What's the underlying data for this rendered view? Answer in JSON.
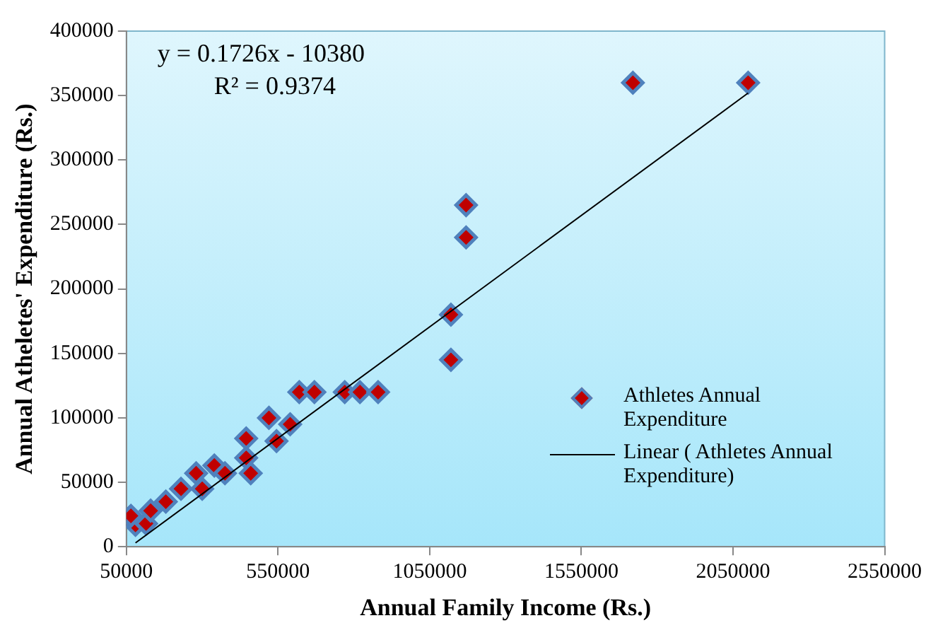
{
  "chart_data": {
    "type": "scatter",
    "xlabel": "Annual Family Income (Rs.)",
    "ylabel": "Annual Atheletes' Expenditure (Rs.)",
    "xlim": [
      50000,
      2550000
    ],
    "xticks": [
      50000,
      550000,
      1050000,
      1550000,
      2050000,
      2550000
    ],
    "ylim": [
      0,
      400000
    ],
    "yticks": [
      0,
      50000,
      100000,
      150000,
      200000,
      250000,
      300000,
      350000,
      400000
    ],
    "grid": false,
    "legend": "right",
    "marker": "diamond",
    "annotations": [
      "y = 0.1726x - 10380",
      "R² = 0.9374"
    ],
    "series": [
      {
        "name": "Athletes Annual Expenditure",
        "color": "#c00000",
        "x": [
          80000,
          115000,
          65000,
          130000,
          180000,
          230000,
          280000,
          300000,
          340000,
          375000,
          445000,
          445000,
          460000,
          520000,
          545000,
          590000,
          620000,
          670000,
          770000,
          820000,
          880000,
          1120000,
          1120000,
          1170000,
          1170000,
          1720000,
          2100000
        ],
        "values": [
          17000,
          18000,
          24000,
          28000,
          35000,
          45000,
          57000,
          45000,
          63000,
          57000,
          84000,
          69000,
          57000,
          100000,
          82000,
          95000,
          120000,
          120000,
          120000,
          120000,
          120000,
          145000,
          180000,
          240000,
          265000,
          360000,
          360000
        ]
      },
      {
        "name": "Linear ( Athletes Annual Expenditure)",
        "type": "line",
        "color": "#000000",
        "marker": "none",
        "x": [
          80000,
          2100000
        ],
        "values": [
          3000,
          352000
        ]
      }
    ]
  }
}
